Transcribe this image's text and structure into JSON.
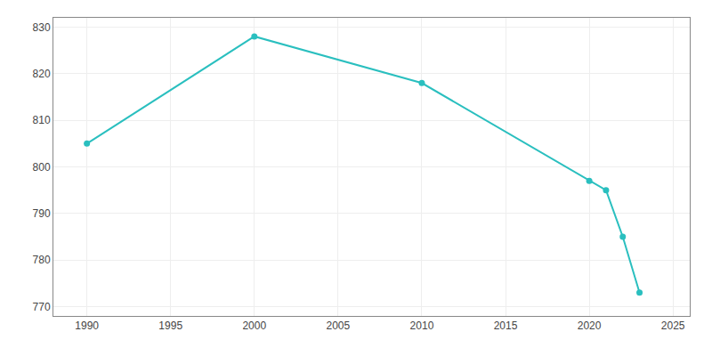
{
  "chart_data": {
    "type": "line",
    "x": [
      1990,
      2000,
      2010,
      2020,
      2021,
      2022,
      2023
    ],
    "series": [
      {
        "color": "#2abfbf",
        "marker": "circle",
        "values": [
          805,
          828,
          818,
          797,
          795,
          785,
          773
        ]
      }
    ],
    "xlim": [
      1988,
      2026
    ],
    "ylim": [
      768,
      832
    ],
    "xticks": [
      1990,
      1995,
      2000,
      2005,
      2010,
      2015,
      2020,
      2025
    ],
    "yticks": [
      770,
      780,
      790,
      800,
      810,
      820,
      830
    ],
    "grid": true
  }
}
